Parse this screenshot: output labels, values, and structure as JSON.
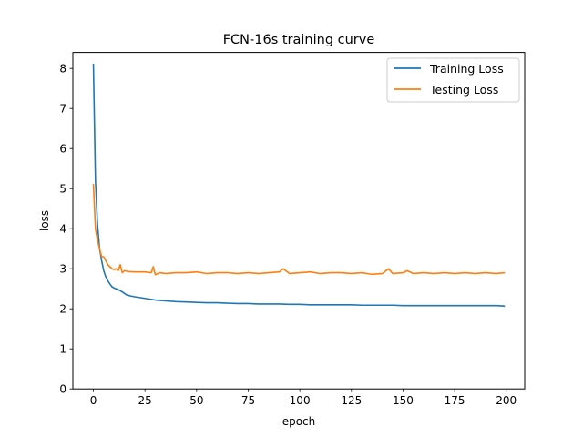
{
  "chart_data": {
    "type": "line",
    "title": "FCN-16s training curve",
    "xlabel": "epoch",
    "ylabel": "loss",
    "xlim": [
      -9.95,
      208.95
    ],
    "ylim": [
      0,
      8.4
    ],
    "xticks": [
      0,
      25,
      50,
      75,
      100,
      125,
      150,
      175,
      200
    ],
    "yticks": [
      0,
      1,
      2,
      3,
      4,
      5,
      6,
      7,
      8
    ],
    "grid": false,
    "legend_position": "top-right",
    "series": [
      {
        "name": "Training Loss",
        "color": "#1f77b4",
        "x": [
          0,
          1,
          2,
          3,
          4,
          5,
          6,
          7,
          8,
          9,
          10,
          12,
          14,
          16,
          18,
          20,
          25,
          30,
          35,
          40,
          45,
          50,
          55,
          60,
          65,
          70,
          75,
          80,
          85,
          90,
          95,
          100,
          105,
          110,
          115,
          120,
          125,
          130,
          135,
          140,
          145,
          150,
          155,
          160,
          165,
          170,
          175,
          180,
          185,
          190,
          195,
          199
        ],
        "y": [
          8.1,
          5.2,
          4.1,
          3.5,
          3.2,
          2.95,
          2.8,
          2.7,
          2.62,
          2.55,
          2.52,
          2.48,
          2.42,
          2.35,
          2.32,
          2.3,
          2.26,
          2.22,
          2.2,
          2.18,
          2.17,
          2.16,
          2.15,
          2.15,
          2.14,
          2.13,
          2.13,
          2.12,
          2.12,
          2.12,
          2.11,
          2.11,
          2.1,
          2.1,
          2.1,
          2.1,
          2.1,
          2.09,
          2.09,
          2.09,
          2.09,
          2.08,
          2.08,
          2.08,
          2.08,
          2.08,
          2.08,
          2.08,
          2.08,
          2.08,
          2.08,
          2.07
        ]
      },
      {
        "name": "Testing Loss",
        "color": "#ff7f0e",
        "x": [
          0,
          1,
          2,
          3,
          4,
          5,
          6,
          7,
          8,
          9,
          10,
          11,
          12,
          13,
          14,
          15,
          17,
          20,
          25,
          28,
          29,
          30,
          32,
          35,
          40,
          45,
          50,
          55,
          60,
          65,
          70,
          75,
          80,
          85,
          90,
          92,
          95,
          100,
          105,
          110,
          115,
          120,
          125,
          130,
          135,
          140,
          143,
          145,
          150,
          152,
          155,
          160,
          165,
          170,
          175,
          180,
          185,
          190,
          195,
          199
        ],
        "y": [
          5.1,
          4.0,
          3.7,
          3.5,
          3.3,
          3.3,
          3.2,
          3.1,
          3.05,
          3.0,
          2.98,
          3.0,
          2.95,
          3.1,
          2.9,
          2.95,
          2.93,
          2.92,
          2.92,
          2.9,
          3.05,
          2.85,
          2.9,
          2.88,
          2.9,
          2.9,
          2.92,
          2.88,
          2.9,
          2.9,
          2.88,
          2.9,
          2.88,
          2.9,
          2.92,
          3.0,
          2.88,
          2.9,
          2.92,
          2.88,
          2.9,
          2.9,
          2.88,
          2.9,
          2.86,
          2.88,
          3.0,
          2.88,
          2.9,
          2.95,
          2.88,
          2.9,
          2.88,
          2.9,
          2.88,
          2.9,
          2.88,
          2.9,
          2.88,
          2.9
        ]
      }
    ]
  }
}
